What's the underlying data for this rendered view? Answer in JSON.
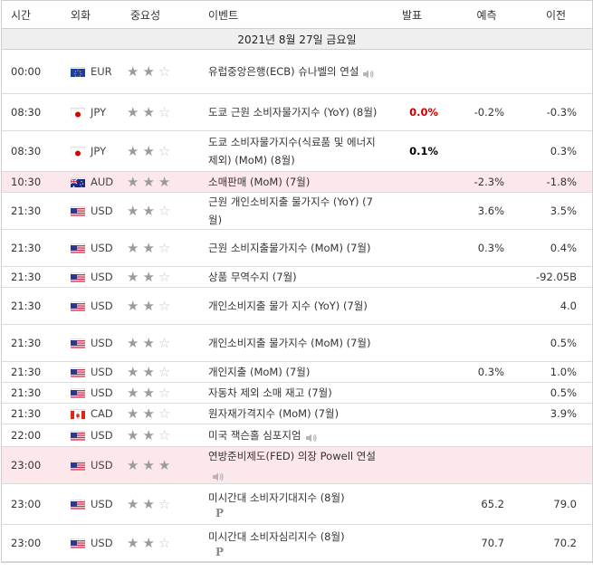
{
  "headers": {
    "time": "시간",
    "currency": "외화",
    "importance": "중요성",
    "event": "이벤트",
    "actual": "발표",
    "forecast": "예측",
    "previous": "이전"
  },
  "date_label": "2021년 8월 27일 금요일",
  "colors": {
    "highlight": "#fce7ea",
    "actual_red": "#cc0000"
  },
  "rows": [
    {
      "time": "00:00",
      "flag": "eu",
      "currency": "EUR",
      "stars": 2,
      "event": "유럽중앙은행(ECB) 슈나벨의 연설",
      "speaker": true,
      "actual": "",
      "actual_color": "",
      "forecast": "",
      "previous": "",
      "highlight": false,
      "pmark": false
    },
    {
      "time": "08:30",
      "flag": "jp",
      "currency": "JPY",
      "stars": 2,
      "event": "도쿄 근원 소비자물가지수 (YoY) (8월)",
      "speaker": false,
      "actual": "0.0%",
      "actual_color": "red",
      "forecast": "-0.2%",
      "previous": "-0.3%",
      "highlight": false,
      "pmark": false
    },
    {
      "time": "08:30",
      "flag": "jp",
      "currency": "JPY",
      "stars": 2,
      "event": "도쿄 소비자물가지수(식료품 및 에너지 제외) (MoM) (8월)",
      "speaker": false,
      "actual": "0.1%",
      "actual_color": "black",
      "forecast": "",
      "previous": "0.3%",
      "highlight": false,
      "pmark": false
    },
    {
      "time": "10:30",
      "flag": "au",
      "currency": "AUD",
      "stars": 3,
      "event": "소매판매 (MoM) (7월)",
      "speaker": false,
      "actual": "",
      "actual_color": "",
      "forecast": "-2.3%",
      "previous": "-1.8%",
      "highlight": true,
      "pmark": false
    },
    {
      "time": "21:30",
      "flag": "us",
      "currency": "USD",
      "stars": 2,
      "event": "근원 개인소비지출 물가지수 (YoY) (7월)",
      "speaker": false,
      "actual": "",
      "actual_color": "",
      "forecast": "3.6%",
      "previous": "3.5%",
      "highlight": false,
      "pmark": false
    },
    {
      "time": "21:30",
      "flag": "us",
      "currency": "USD",
      "stars": 2,
      "event": "근원 소비지출물가지수 (MoM) (7월)",
      "speaker": false,
      "actual": "",
      "actual_color": "",
      "forecast": "0.3%",
      "previous": "0.4%",
      "highlight": false,
      "pmark": false
    },
    {
      "time": "21:30",
      "flag": "us",
      "currency": "USD",
      "stars": 2,
      "event": "상품 무역수지 (7월)",
      "speaker": false,
      "actual": "",
      "actual_color": "",
      "forecast": "",
      "previous": "-92.05B",
      "highlight": false,
      "pmark": false
    },
    {
      "time": "21:30",
      "flag": "us",
      "currency": "USD",
      "stars": 2,
      "event": "개인소비지출 물가 지수 (YoY) (7월)",
      "speaker": false,
      "actual": "",
      "actual_color": "",
      "forecast": "",
      "previous": "4.0",
      "highlight": false,
      "pmark": false
    },
    {
      "time": "21:30",
      "flag": "us",
      "currency": "USD",
      "stars": 2,
      "event": "개인소비지출 물가지수 (MoM) (7월)",
      "speaker": false,
      "actual": "",
      "actual_color": "",
      "forecast": "",
      "previous": "0.5%",
      "highlight": false,
      "pmark": false
    },
    {
      "time": "21:30",
      "flag": "us",
      "currency": "USD",
      "stars": 2,
      "event": "개인지출 (MoM) (7월)",
      "speaker": false,
      "actual": "",
      "actual_color": "",
      "forecast": "0.3%",
      "previous": "1.0%",
      "highlight": false,
      "pmark": false
    },
    {
      "time": "21:30",
      "flag": "us",
      "currency": "USD",
      "stars": 2,
      "event": "자동차 제외 소매 재고 (7월)",
      "speaker": false,
      "actual": "",
      "actual_color": "",
      "forecast": "",
      "previous": "0.5%",
      "highlight": false,
      "pmark": false
    },
    {
      "time": "21:30",
      "flag": "ca",
      "currency": "CAD",
      "stars": 2,
      "event": "원자재가격지수 (MoM) (7월)",
      "speaker": false,
      "actual": "",
      "actual_color": "",
      "forecast": "",
      "previous": "3.9%",
      "highlight": false,
      "pmark": false
    },
    {
      "time": "22:00",
      "flag": "us",
      "currency": "USD",
      "stars": 2,
      "event": "미국 잭슨홀 심포지엄",
      "speaker": true,
      "actual": "",
      "actual_color": "",
      "forecast": "",
      "previous": "",
      "highlight": false,
      "pmark": false
    },
    {
      "time": "23:00",
      "flag": "us",
      "currency": "USD",
      "stars": 3,
      "event": "연방준비제도(FED) 의장 Powell 연설",
      "speaker": true,
      "actual": "",
      "actual_color": "",
      "forecast": "",
      "previous": "",
      "highlight": true,
      "pmark": false
    },
    {
      "time": "23:00",
      "flag": "us",
      "currency": "USD",
      "stars": 2,
      "event": "미시간대 소비자기대지수 (8월)",
      "speaker": false,
      "actual": "",
      "actual_color": "",
      "forecast": "65.2",
      "previous": "79.0",
      "highlight": false,
      "pmark": true
    },
    {
      "time": "23:00",
      "flag": "us",
      "currency": "USD",
      "stars": 2,
      "event": "미시간대 소비자심리지수 (8월)",
      "speaker": false,
      "actual": "",
      "actual_color": "",
      "forecast": "70.7",
      "previous": "70.2",
      "highlight": false,
      "pmark": true
    }
  ]
}
